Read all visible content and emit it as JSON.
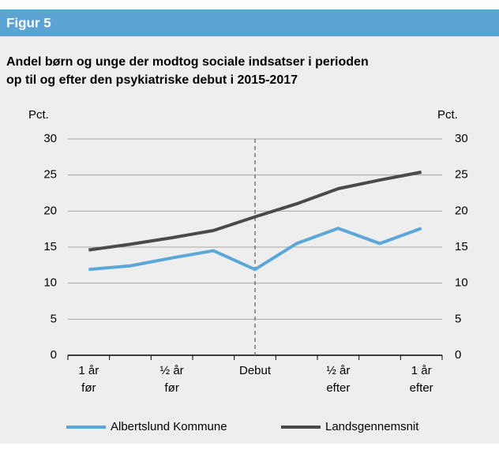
{
  "header": {
    "title": "Figur 5"
  },
  "chart_data": {
    "type": "line",
    "title": [
      "Andel børn og unge der modtog sociale indsatser i perioden",
      "op til og efter den psykiatriske debut i 2015-2017"
    ],
    "y_label": "Pct.",
    "y2_label": "Pct.",
    "categories": [
      [
        "1 år",
        "før"
      ],
      null,
      [
        "½ år",
        "før"
      ],
      null,
      [
        "Debut"
      ],
      null,
      [
        "½ år",
        "efter"
      ],
      null,
      [
        "1 år",
        "efter"
      ]
    ],
    "series": [
      {
        "name": "Albertslund Kommune",
        "color": "#5ba8d8",
        "values": [
          11.9,
          12.4,
          13.5,
          14.5,
          11.9,
          15.5,
          17.6,
          15.5,
          17.6
        ]
      },
      {
        "name": "Landsgennemsnit",
        "color": "#4a4a4c",
        "values": [
          14.6,
          15.4,
          16.3,
          17.3,
          19.2,
          21.0,
          23.1,
          24.3,
          25.4
        ]
      }
    ],
    "ylim": [
      0,
      30
    ],
    "yticks": [
      0,
      5,
      10,
      15,
      20,
      25,
      30
    ],
    "y2lim": [
      0,
      30
    ],
    "y2ticks": [
      0,
      5,
      10,
      15,
      20,
      25,
      30
    ],
    "grid": true,
    "legend": "bottom"
  }
}
